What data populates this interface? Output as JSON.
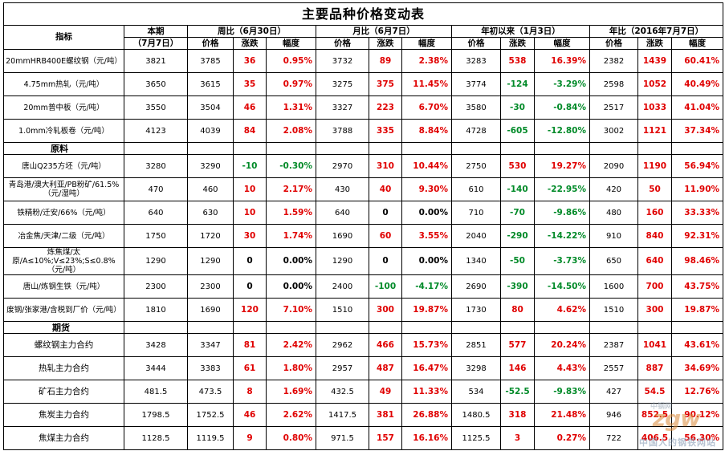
{
  "title": "主要品种价格变动表",
  "header": {
    "indicator": "指标",
    "current_l1": "本期",
    "current_l2": "（7月7日）",
    "groups": [
      {
        "label": "周比（6月30日）"
      },
      {
        "label": "月比（6月7日）"
      },
      {
        "label": "年初以来（1月3日）"
      },
      {
        "label": "年比（2016年7月7日）"
      }
    ],
    "sub": {
      "price": "价格",
      "change": "涨跌",
      "pct": "幅度"
    }
  },
  "sections": [
    {
      "label": "",
      "rows": [
        {
          "name": "20mmHRB400E螺纹钢（元/吨）",
          "cur": "3821",
          "groups": [
            {
              "price": "3785",
              "chg": "36",
              "pct": "0.95%"
            },
            {
              "price": "3732",
              "chg": "89",
              "pct": "2.38%"
            },
            {
              "price": "3283",
              "chg": "538",
              "pct": "16.39%"
            },
            {
              "price": "2382",
              "chg": "1439",
              "pct": "60.41%"
            }
          ]
        },
        {
          "name": "4.75mm热轧（元/吨）",
          "cur": "3650",
          "groups": [
            {
              "price": "3615",
              "chg": "35",
              "pct": "0.97%"
            },
            {
              "price": "3275",
              "chg": "375",
              "pct": "11.45%"
            },
            {
              "price": "3774",
              "chg": "-124",
              "pct": "-3.29%"
            },
            {
              "price": "2598",
              "chg": "1052",
              "pct": "40.49%"
            }
          ]
        },
        {
          "name": "20mm普中板（元/吨）",
          "cur": "3550",
          "groups": [
            {
              "price": "3504",
              "chg": "46",
              "pct": "1.31%"
            },
            {
              "price": "3327",
              "chg": "223",
              "pct": "6.70%"
            },
            {
              "price": "3580",
              "chg": "-30",
              "pct": "-0.84%"
            },
            {
              "price": "2517",
              "chg": "1033",
              "pct": "41.04%"
            }
          ]
        },
        {
          "name": "1.0mm冷轧板卷（元/吨）",
          "cur": "4123",
          "groups": [
            {
              "price": "4039",
              "chg": "84",
              "pct": "2.08%"
            },
            {
              "price": "3788",
              "chg": "335",
              "pct": "8.84%"
            },
            {
              "price": "4728",
              "chg": "-605",
              "pct": "-12.80%"
            },
            {
              "price": "3002",
              "chg": "1121",
              "pct": "37.34%"
            }
          ]
        }
      ]
    },
    {
      "label": "原料",
      "rows": [
        {
          "name": "唐山Q235方坯（元/吨）",
          "cur": "3280",
          "groups": [
            {
              "price": "3290",
              "chg": "-10",
              "pct": "-0.30%"
            },
            {
              "price": "2970",
              "chg": "310",
              "pct": "10.44%"
            },
            {
              "price": "2750",
              "chg": "530",
              "pct": "19.27%"
            },
            {
              "price": "2090",
              "chg": "1190",
              "pct": "56.94%"
            }
          ]
        },
        {
          "name": "青岛港/澳大利亚/PB粉矿/61.5%（元/湿吨）",
          "cur": "470",
          "groups": [
            {
              "price": "460",
              "chg": "10",
              "pct": "2.17%"
            },
            {
              "price": "430",
              "chg": "40",
              "pct": "9.30%"
            },
            {
              "price": "610",
              "chg": "-140",
              "pct": "-22.95%"
            },
            {
              "price": "420",
              "chg": "50",
              "pct": "11.90%"
            }
          ]
        },
        {
          "name": "铁精粉/迁安/66%（元/吨）",
          "cur": "640",
          "groups": [
            {
              "price": "630",
              "chg": "10",
              "pct": "1.59%"
            },
            {
              "price": "640",
              "chg": "0",
              "pct": "0.00%"
            },
            {
              "price": "710",
              "chg": "-70",
              "pct": "-9.86%"
            },
            {
              "price": "480",
              "chg": "160",
              "pct": "33.33%"
            }
          ]
        },
        {
          "name": "冶金焦/天津/二级（元/吨）",
          "cur": "1750",
          "groups": [
            {
              "price": "1720",
              "chg": "30",
              "pct": "1.74%"
            },
            {
              "price": "1690",
              "chg": "60",
              "pct": "3.55%"
            },
            {
              "price": "2040",
              "chg": "-290",
              "pct": "-14.22%"
            },
            {
              "price": "910",
              "chg": "840",
              "pct": "92.31%"
            }
          ]
        },
        {
          "name": "炼焦煤/太原/A≤10%;V≤23%;S≤0.8%（元/吨）",
          "cur": "1290",
          "groups": [
            {
              "price": "1290",
              "chg": "0",
              "pct": "0.00%"
            },
            {
              "price": "1290",
              "chg": "0",
              "pct": "0.00%"
            },
            {
              "price": "1340",
              "chg": "-50",
              "pct": "-3.73%"
            },
            {
              "price": "650",
              "chg": "640",
              "pct": "98.46%"
            }
          ]
        },
        {
          "name": "唐山/炼钢生铁（元/吨）",
          "cur": "2300",
          "groups": [
            {
              "price": "2300",
              "chg": "0",
              "pct": "0.00%"
            },
            {
              "price": "2400",
              "chg": "-100",
              "pct": "-4.17%"
            },
            {
              "price": "2690",
              "chg": "-390",
              "pct": "-14.50%"
            },
            {
              "price": "1600",
              "chg": "700",
              "pct": "43.75%"
            }
          ]
        },
        {
          "name": "废钢/张家港/含税到厂价（元/吨）",
          "cur": "1810",
          "groups": [
            {
              "price": "1690",
              "chg": "120",
              "pct": "7.10%"
            },
            {
              "price": "1510",
              "chg": "300",
              "pct": "19.87%"
            },
            {
              "price": "1730",
              "chg": "80",
              "pct": "4.62%"
            },
            {
              "price": "1510",
              "chg": "300",
              "pct": "19.87%"
            }
          ]
        }
      ]
    },
    {
      "label": "期货",
      "rows": [
        {
          "name": "螺纹钢主力合约",
          "cur": "3428",
          "groups": [
            {
              "price": "3347",
              "chg": "81",
              "pct": "2.42%"
            },
            {
              "price": "2962",
              "chg": "466",
              "pct": "15.73%"
            },
            {
              "price": "2851",
              "chg": "577",
              "pct": "20.24%"
            },
            {
              "price": "2387",
              "chg": "1041",
              "pct": "43.61%"
            }
          ]
        },
        {
          "name": "热轧主力合约",
          "cur": "3444",
          "groups": [
            {
              "price": "3383",
              "chg": "61",
              "pct": "1.80%"
            },
            {
              "price": "2957",
              "chg": "487",
              "pct": "16.47%"
            },
            {
              "price": "3298",
              "chg": "146",
              "pct": "4.43%"
            },
            {
              "price": "2557",
              "chg": "887",
              "pct": "34.69%"
            }
          ]
        },
        {
          "name": "矿石主力合约",
          "cur": "481.5",
          "groups": [
            {
              "price": "473.5",
              "chg": "8",
              "pct": "1.69%"
            },
            {
              "price": "432.5",
              "chg": "49",
              "pct": "11.33%"
            },
            {
              "price": "534",
              "chg": "-52.5",
              "pct": "-9.83%"
            },
            {
              "price": "427",
              "chg": "54.5",
              "pct": "12.76%"
            }
          ]
        },
        {
          "name": "焦炭主力合约",
          "cur": "1798.5",
          "groups": [
            {
              "price": "1752.5",
              "chg": "46",
              "pct": "2.62%"
            },
            {
              "price": "1417.5",
              "chg": "381",
              "pct": "26.88%"
            },
            {
              "price": "1480.5",
              "chg": "318",
              "pct": "21.48%"
            },
            {
              "price": "946",
              "chg": "852.5",
              "pct": "90.12%"
            }
          ]
        },
        {
          "name": "焦煤主力合约",
          "cur": "1128.5",
          "groups": [
            {
              "price": "1119.5",
              "chg": "9",
              "pct": "0.80%"
            },
            {
              "price": "971.5",
              "chg": "157",
              "pct": "16.16%"
            },
            {
              "price": "1125.5",
              "chg": "3",
              "pct": "0.27%"
            },
            {
              "price": "722",
              "chg": "406.5",
              "pct": "56.30%"
            }
          ]
        }
      ]
    }
  ],
  "colors": {
    "up": "#e00000",
    "down": "#008a28",
    "flat": "#000000"
  },
  "watermark": {
    "brand": "zgw",
    "brand_small": "中钢网",
    "slogan": "中国人的钢铁网站"
  }
}
